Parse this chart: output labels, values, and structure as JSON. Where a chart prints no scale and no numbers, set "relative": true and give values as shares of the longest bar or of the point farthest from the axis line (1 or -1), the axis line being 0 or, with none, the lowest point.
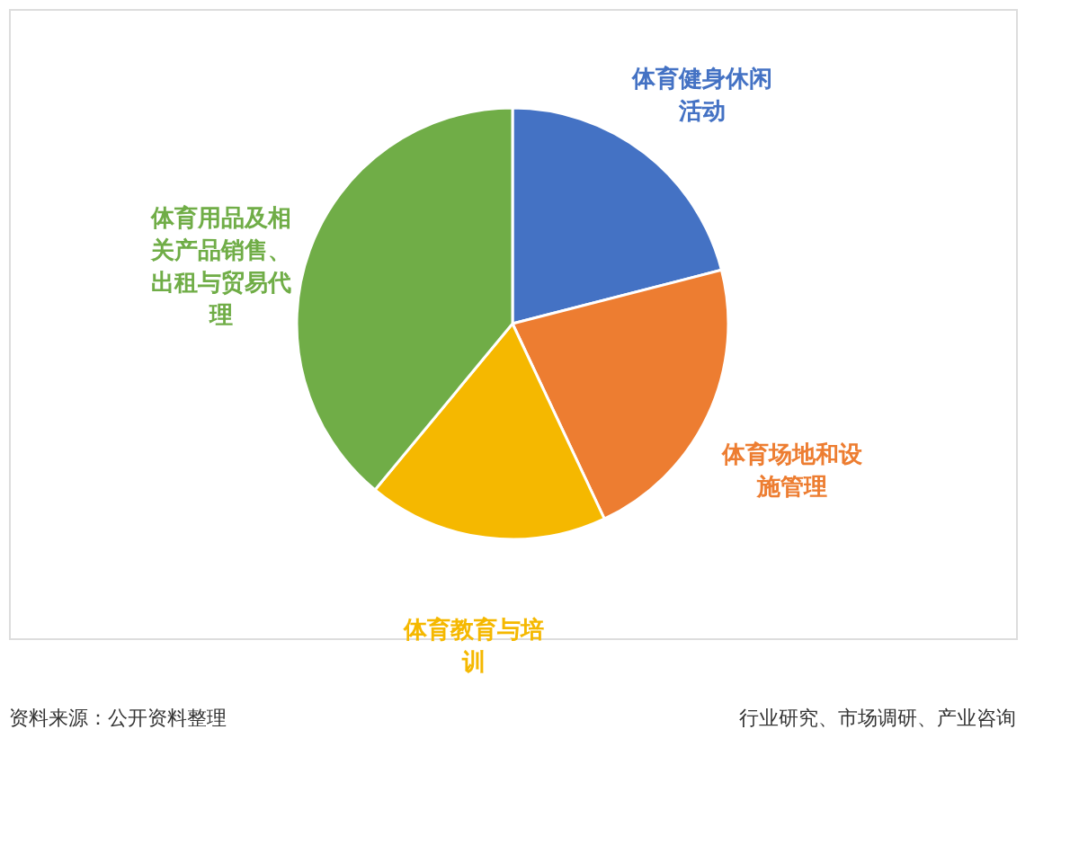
{
  "chart_data": {
    "type": "pie",
    "relative": true,
    "categories": [
      "体育健身休闲活动",
      "体育场地和设施管理",
      "体育教育与培训",
      "体育用品及相关产品销售、出租与贸易代理"
    ],
    "values": [
      21,
      22,
      18,
      39
    ],
    "colors": [
      "#4472c4",
      "#ed7d31",
      "#f5b800",
      "#70ad47"
    ],
    "legend": false,
    "annotations": [
      "资料来源：公开资料整理",
      "行业研究、市场调研、产业咨询"
    ]
  }
}
